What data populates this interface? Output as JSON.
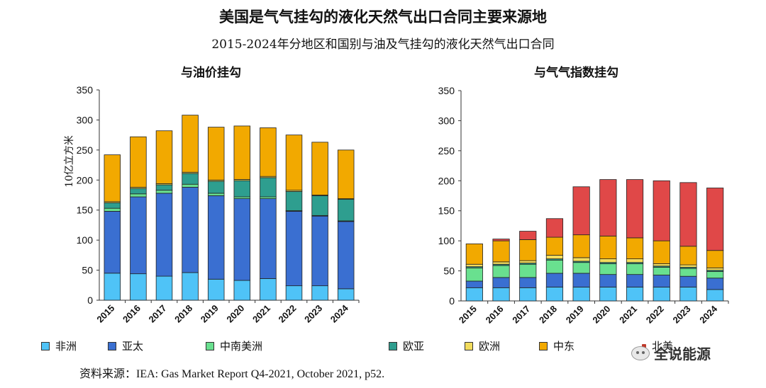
{
  "title": "美国是气气挂勾的液化天然气出口合同主要来源地",
  "subtitle": "2015-2024年分地区和国别与油及气挂勾的液化天然气出口合同",
  "colors": {
    "africa": "#4FC3F7",
    "asia_pacific": "#3A6FD1",
    "latam": "#69E08F",
    "europe_asia": "#2E9E8F",
    "europe": "#F2DC5D",
    "middle_east": "#F2A900",
    "north_america": "#E04848"
  },
  "chart_data": [
    {
      "type": "bar",
      "stacked": true,
      "title": "与油价挂勾",
      "ylabel": "10亿立方米",
      "ylim": [
        0,
        350
      ],
      "yticks": [
        0,
        50,
        100,
        150,
        200,
        250,
        300,
        350
      ],
      "categories": [
        "2015",
        "2016",
        "2017",
        "2018",
        "2019",
        "2020",
        "2021",
        "2022",
        "2023",
        "2024"
      ],
      "series": [
        {
          "name": "非洲",
          "color_key": "africa",
          "values": [
            45,
            44,
            40,
            46,
            35,
            33,
            36,
            24,
            24,
            19
          ]
        },
        {
          "name": "亚太",
          "color_key": "asia_pacific",
          "values": [
            103,
            128,
            138,
            142,
            139,
            136,
            133,
            124,
            116,
            112
          ]
        },
        {
          "name": "中南美洲",
          "color_key": "latam",
          "values": [
            5,
            5,
            5,
            5,
            4,
            3,
            3,
            1,
            1,
            1
          ]
        },
        {
          "name": "欧亚",
          "color_key": "europe_asia",
          "values": [
            9,
            9,
            9,
            18,
            20,
            27,
            32,
            32,
            33,
            36
          ]
        },
        {
          "name": "欧洲",
          "color_key": "europe",
          "values": [
            2,
            2,
            2,
            2,
            2,
            2,
            2,
            2,
            1,
            1
          ]
        },
        {
          "name": "中东",
          "color_key": "middle_east",
          "values": [
            78,
            84,
            88,
            95,
            88,
            89,
            81,
            92,
            88,
            81
          ]
        },
        {
          "name": "北美",
          "color_key": "north_america",
          "values": [
            0,
            0,
            0,
            0,
            0,
            0,
            0,
            0,
            0,
            0
          ]
        }
      ]
    },
    {
      "type": "bar",
      "stacked": true,
      "title": "与气气指数挂勾",
      "ylim": [
        0,
        350
      ],
      "yticks": [
        0,
        50,
        100,
        150,
        200,
        250,
        300,
        350
      ],
      "categories": [
        "2015",
        "2016",
        "2017",
        "2018",
        "2019",
        "2020",
        "2021",
        "2022",
        "2023",
        "2024"
      ],
      "series": [
        {
          "name": "非洲",
          "color_key": "africa",
          "values": [
            22,
            22,
            22,
            23,
            23,
            23,
            23,
            23,
            23,
            19
          ]
        },
        {
          "name": "亚太",
          "color_key": "asia_pacific",
          "values": [
            11,
            17,
            17,
            23,
            23,
            21,
            21,
            20,
            18,
            19
          ]
        },
        {
          "name": "中南美洲",
          "color_key": "latam",
          "values": [
            22,
            20,
            22,
            22,
            18,
            18,
            18,
            13,
            13,
            11
          ]
        },
        {
          "name": "欧亚",
          "color_key": "europe_asia",
          "values": [
            2,
            2,
            2,
            2,
            2,
            2,
            2,
            2,
            2,
            2
          ]
        },
        {
          "name": "欧洲",
          "color_key": "europe",
          "values": [
            4,
            4,
            4,
            6,
            6,
            6,
            6,
            4,
            4,
            4
          ]
        },
        {
          "name": "中东",
          "color_key": "middle_east",
          "values": [
            34,
            35,
            35,
            30,
            38,
            38,
            35,
            38,
            31,
            29
          ]
        },
        {
          "name": "北美",
          "color_key": "north_america",
          "values": [
            0,
            3,
            14,
            31,
            80,
            94,
            97,
            100,
            106,
            104
          ]
        }
      ]
    }
  ],
  "legend": [
    {
      "label": "非洲",
      "color_key": "africa"
    },
    {
      "label": "亚太",
      "color_key": "asia_pacific"
    },
    {
      "label": "中南美洲",
      "color_key": "latam"
    },
    {
      "label": "欧亚",
      "color_key": "europe_asia"
    },
    {
      "label": "欧洲",
      "color_key": "europe"
    },
    {
      "label": "中东",
      "color_key": "middle_east"
    },
    {
      "label": "北美",
      "color_key": "north_america"
    }
  ],
  "source": "资料来源：IEA: Gas Market Report Q4-2021, October 2021, p52.",
  "watermark": "全说能源"
}
